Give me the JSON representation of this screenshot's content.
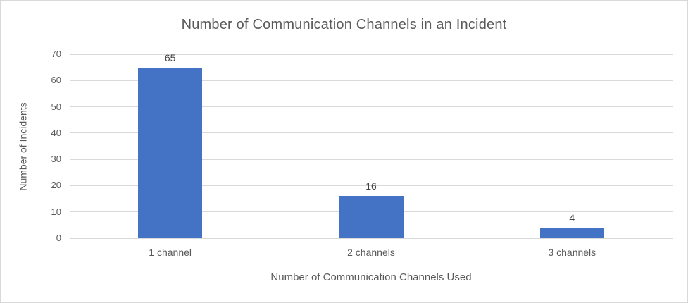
{
  "chart_data": {
    "type": "bar",
    "title": "Number of Communication Channels in an Incident",
    "xlabel": "Number of Communication Channels Used",
    "ylabel": "Number of Incidents",
    "categories": [
      "1 channel",
      "2 channels",
      "3 channels"
    ],
    "values": [
      65,
      16,
      4
    ],
    "data_labels": [
      "65",
      "16",
      "4"
    ],
    "yticks": [
      0,
      10,
      20,
      30,
      40,
      50,
      60,
      70
    ],
    "ylim": [
      0,
      70
    ],
    "grid": "horizontal",
    "legend": "none",
    "colors": {
      "bar": "#4472c4",
      "gridline": "#d9d9d9",
      "axis_line": "#d9d9d9",
      "title_text": "#595959",
      "axis_title_text": "#595959",
      "tick_text": "#595959",
      "data_label_text": "#404040",
      "frame_border": "#d9d9d9",
      "background": "#ffffff"
    }
  }
}
